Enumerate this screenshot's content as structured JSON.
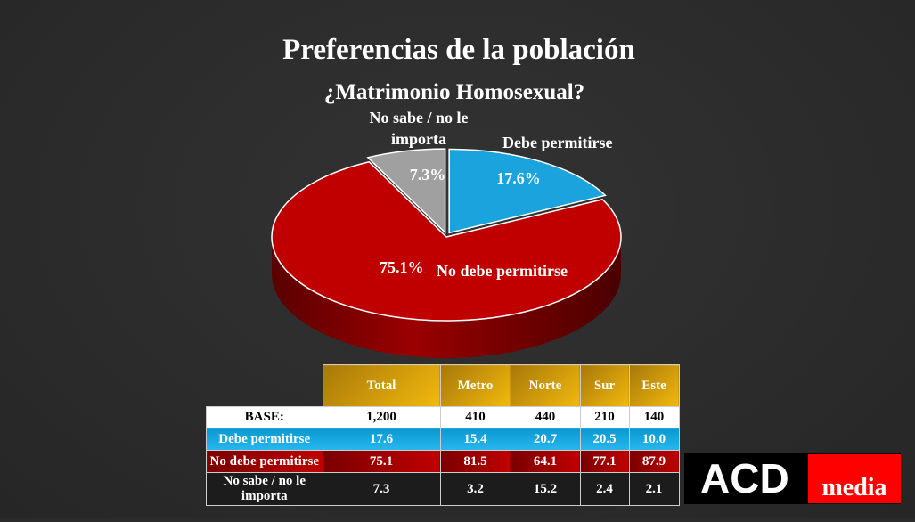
{
  "title": "Preferencias de la población",
  "chart_data": {
    "type": "pie",
    "title": "¿Matrimonio Homosexual?",
    "slices": [
      {
        "label": "Debe permitirse",
        "value": 17.6,
        "value_label": "17.6%",
        "color": "#1aa3dc"
      },
      {
        "label": "No debe permitirse",
        "value": 75.1,
        "value_label": "75.1%",
        "color": "#c00000"
      },
      {
        "label": "No sabe / no le importa",
        "label_lines": [
          "No sabe / no le",
          "importa"
        ],
        "value": 7.3,
        "value_label": "7.3%",
        "color": "#a0a0a0"
      }
    ]
  },
  "table": {
    "headers": [
      "Total",
      "Metro",
      "Norte",
      "Sur",
      "Este"
    ],
    "rows": [
      {
        "label": "BASE:",
        "values": [
          "1,200",
          "410",
          "440",
          "210",
          "140"
        ]
      },
      {
        "label": "Debe permitirse",
        "values": [
          "17.6",
          "15.4",
          "20.7",
          "20.5",
          "10.0"
        ]
      },
      {
        "label": "No debe permitirse",
        "values": [
          "75.1",
          "81.5",
          "64.1",
          "77.1",
          "87.9"
        ]
      },
      {
        "label_lines": [
          "No sabe / no le",
          "importa"
        ],
        "values": [
          "7.3",
          "3.2",
          "15.2",
          "2.4",
          "2.1"
        ]
      }
    ]
  },
  "logo": {
    "acd": "ACD",
    "media": "media"
  }
}
